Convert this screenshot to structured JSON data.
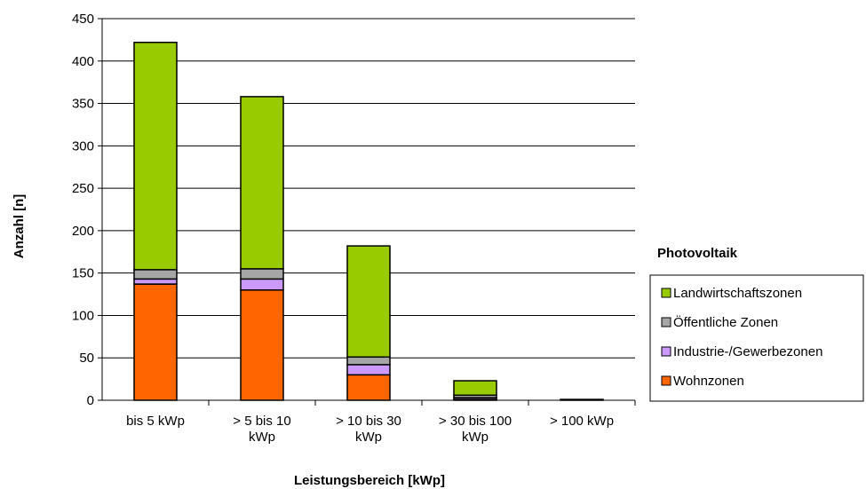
{
  "chart_data": {
    "type": "bar",
    "stacked": true,
    "title": "",
    "xlabel": "Leistungsbereich [kWp]",
    "ylabel": "Anzahl [n]",
    "ylim": [
      0,
      450
    ],
    "yticks": [
      0,
      50,
      100,
      150,
      200,
      250,
      300,
      350,
      400,
      450
    ],
    "grid": true,
    "categories": [
      [
        "bis 5 kWp"
      ],
      [
        "> 5 bis 10",
        "kWp"
      ],
      [
        "> 10 bis 30",
        "kWp"
      ],
      [
        "> 30 bis 100",
        "kWp"
      ],
      [
        "> 100 kWp"
      ]
    ],
    "series": [
      {
        "name": "Wohnzonen",
        "color": "#FF6600",
        "values": [
          137,
          130,
          30,
          1,
          0
        ]
      },
      {
        "name": "Industrie-/Gewerbezonen",
        "color": "#CC99FF",
        "values": [
          6,
          13,
          12,
          2,
          0
        ]
      },
      {
        "name": "Öffentliche Zonen",
        "color": "#A6A6A6",
        "values": [
          11,
          12,
          9,
          3,
          0
        ]
      },
      {
        "name": "Landwirtschaftszonen",
        "color": "#99CC00",
        "values": [
          268,
          203,
          131,
          17,
          1
        ]
      }
    ],
    "legend": {
      "title": "Photovoltaik",
      "position": "right",
      "order": [
        "Landwirtschaftszonen",
        "Öffentliche Zonen",
        "Industrie-/Gewerbezonen",
        "Wohnzonen"
      ]
    }
  }
}
